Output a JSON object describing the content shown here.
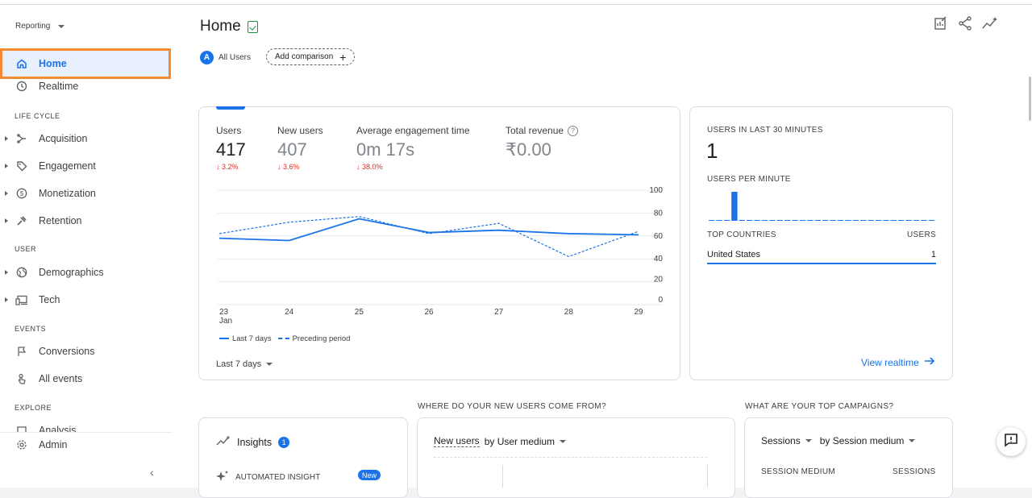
{
  "sidebar": {
    "reporting_label": "Reporting",
    "items": [
      {
        "label": "Home",
        "icon": "home-icon"
      },
      {
        "label": "Realtime",
        "icon": "clock-icon"
      },
      {
        "label": "Acquisition",
        "icon": "acquisition-icon"
      },
      {
        "label": "Engagement",
        "icon": "tag-icon"
      },
      {
        "label": "Monetization",
        "icon": "dollar-icon"
      },
      {
        "label": "Retention",
        "icon": "retention-icon"
      },
      {
        "label": "Demographics",
        "icon": "globe-icon"
      },
      {
        "label": "Tech",
        "icon": "devices-icon"
      },
      {
        "label": "Conversions",
        "icon": "flag-icon"
      },
      {
        "label": "All events",
        "icon": "touch-icon"
      },
      {
        "label": "Analysis",
        "icon": "analysis-icon"
      }
    ],
    "sections": {
      "lifecycle": "LIFE CYCLE",
      "user": "USER",
      "events": "EVENTS",
      "explore": "EXPLORE"
    },
    "admin_label": "Admin"
  },
  "header": {
    "title": "Home",
    "audience_initial": "A",
    "audience_label": "All Users",
    "add_comparison": "Add comparison"
  },
  "overview": {
    "metrics": [
      {
        "label": "Users",
        "value": "417",
        "delta": "↓ 3.2%"
      },
      {
        "label": "New users",
        "value": "407",
        "delta": "↓ 3.6%"
      },
      {
        "label": "Average engagement time",
        "value": "0m 17s",
        "delta": "↓ 38.0%"
      },
      {
        "label": "Total revenue",
        "value": "₹0.00"
      }
    ],
    "legend_current": "Last 7 days",
    "legend_previous": "Preceding period",
    "date_range": "Last 7 days"
  },
  "chart_data": {
    "type": "line",
    "x": [
      "23",
      "24",
      "25",
      "26",
      "27",
      "28",
      "29"
    ],
    "x_sublabel": "Jan",
    "yticks": [
      0,
      20,
      40,
      60,
      80,
      100
    ],
    "ylim": [
      0,
      100
    ],
    "series": [
      {
        "name": "Last 7 days",
        "values": [
          58,
          56,
          75,
          63,
          65,
          62,
          61
        ]
      },
      {
        "name": "Preceding period",
        "values": [
          62,
          72,
          77,
          62,
          71,
          42,
          64
        ]
      }
    ],
    "colors": {
      "line": "#1a73e8"
    }
  },
  "realtime": {
    "title": "USERS IN LAST 30 MINUTES",
    "value": "1",
    "per_minute_label": "USERS PER MINUTE",
    "bars": [
      0,
      0,
      0,
      1,
      0,
      0,
      0,
      0,
      0,
      0,
      0,
      0,
      0,
      0,
      0,
      0,
      0,
      0,
      0,
      0,
      0,
      0,
      0,
      0,
      0,
      0,
      0,
      0,
      0,
      0
    ],
    "countries_header": "TOP COUNTRIES",
    "users_header": "USERS",
    "rows": [
      {
        "country": "United States",
        "users": "1"
      }
    ],
    "view_realtime": "View realtime"
  },
  "bottom": {
    "q_new_users": "WHERE DO YOUR NEW USERS COME FROM?",
    "q_campaigns": "WHAT ARE YOUR TOP CAMPAIGNS?",
    "insights_label": "Insights",
    "insights_count": "1",
    "automated_insight": "AUTOMATED INSIGHT",
    "new_badge": "New",
    "new_users_metric": "New users",
    "new_users_by": "by User medium",
    "sessions_metric": "Sessions",
    "sessions_by": "by Session medium",
    "session_medium_header": "SESSION MEDIUM",
    "sessions_header": "SESSIONS"
  }
}
